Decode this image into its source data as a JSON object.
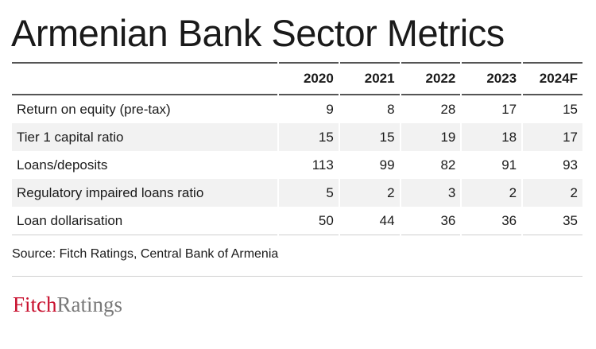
{
  "title": "Armenian Bank Sector Metrics",
  "table": {
    "columns": [
      "2020",
      "2021",
      "2022",
      "2023",
      "2024F"
    ],
    "rows": [
      {
        "label": "Return on equity (pre-tax)",
        "values": [
          "9",
          "8",
          "28",
          "17",
          "15"
        ]
      },
      {
        "label": "Tier 1 capital ratio",
        "values": [
          "15",
          "15",
          "19",
          "18",
          "17"
        ]
      },
      {
        "label": "Loans/deposits",
        "values": [
          "113",
          "99",
          "82",
          "91",
          "93"
        ]
      },
      {
        "label": "Regulatory impaired loans ratio",
        "values": [
          "5",
          "2",
          "3",
          "2",
          "2"
        ]
      },
      {
        "label": "Loan dollarisation",
        "values": [
          "50",
          "44",
          "36",
          "36",
          "35"
        ]
      }
    ]
  },
  "source": "Source: Fitch Ratings, Central Bank of Armenia",
  "logo": {
    "part1": "Fitch",
    "part2": "Ratings",
    "color1": "#c8102e",
    "color2": "#7a7a7a"
  }
}
